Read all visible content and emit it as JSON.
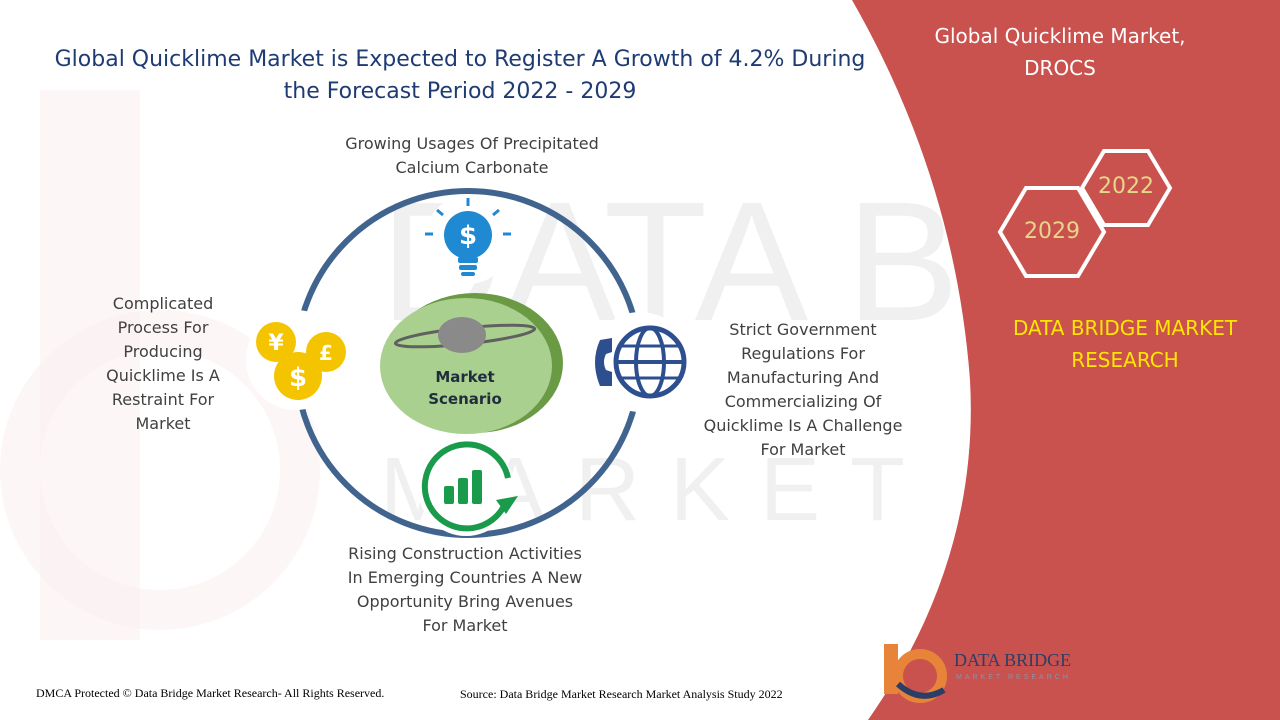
{
  "header": {
    "title_line1": "Global Quicklime Market is Expected to Register A Growth of 4.2% During",
    "title_line2": "the Forecast Period 2022 - 2029"
  },
  "diagram": {
    "center": {
      "line1": "Market",
      "line2": "Scenario"
    },
    "top": {
      "line1": "Growing Usages Of Precipitated",
      "line2": "Calcium Carbonate",
      "icon": "lightbulb-dollar-icon"
    },
    "left": {
      "lines": [
        "Complicated",
        "Process For",
        "Producing",
        "Quicklime Is A",
        "Restraint  For",
        "Market"
      ],
      "icon": "currency-coins-icon"
    },
    "right": {
      "lines": [
        "Strict Government",
        "Regulations For",
        "Manufacturing And",
        "Commercializing Of",
        "Quicklime Is A Challenge",
        "For Market"
      ],
      "icon": "phone-globe-icon"
    },
    "bottom": {
      "lines": [
        "Rising Construction Activities",
        "In Emerging Countries A New",
        "Opportunity Bring Avenues",
        "For Market"
      ],
      "icon": "growth-chart-icon"
    }
  },
  "panel": {
    "title_line1": "Global Quicklime Market,",
    "title_line2": "DROCS",
    "year_a": "2022",
    "year_b": "2029",
    "brand_line1": "DATA BRIDGE MARKET",
    "brand_line2": "RESEARCH"
  },
  "footer": {
    "copyright": "DMCA Protected © Data Bridge Market Research- All Rights Reserved.",
    "source": "Source: Data Bridge Market Research Market Analysis Study 2022"
  },
  "logo": {
    "name": "DATA BRIDGE",
    "tagline": "MARKET RESEARCH"
  },
  "colors": {
    "panel_red": "#c9514e",
    "title_blue": "#1f3b73",
    "ring_blue": "#41648f",
    "center_green": "#a9d08e",
    "brand_yellow": "#ffe600",
    "icon_blue": "#1f8ad1",
    "icon_gold": "#f5c400",
    "icon_green": "#1a9b4b",
    "icon_navy": "#2e4f8f"
  }
}
